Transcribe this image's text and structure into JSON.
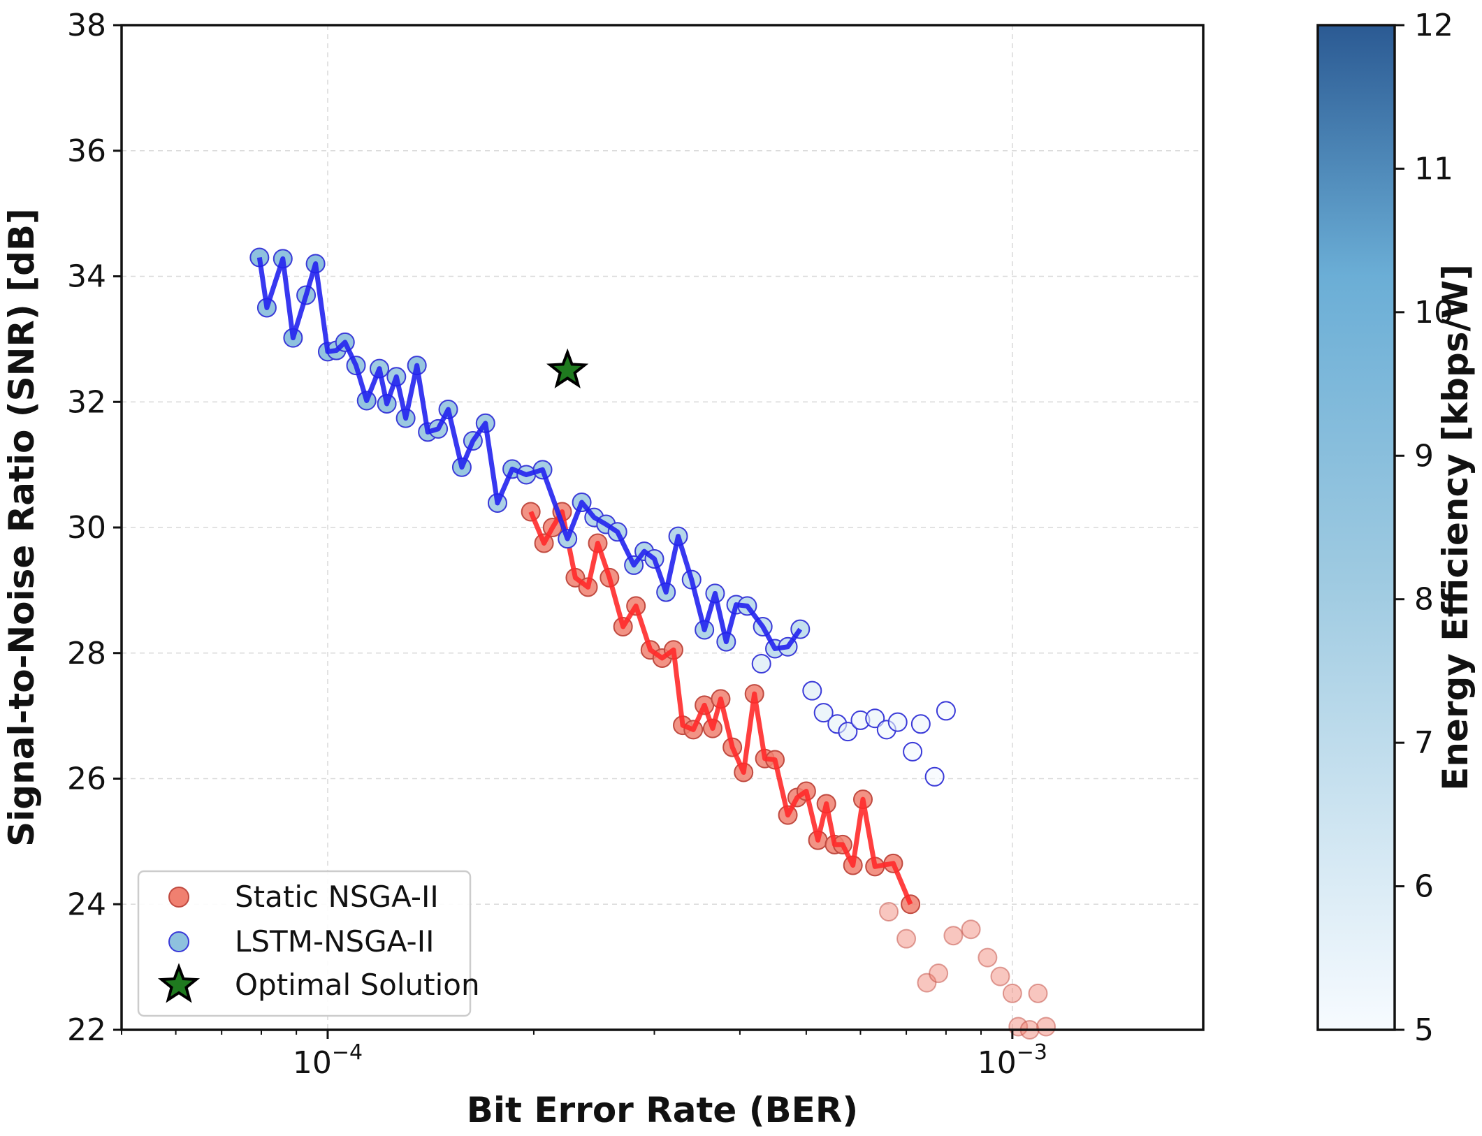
{
  "chart_data": {
    "type": "scatter",
    "title": "",
    "xlabel": "Bit Error Rate (BER)",
    "ylabel": "Signal-to-Noise Ratio (SNR) [dB]",
    "xscale": "log",
    "xlim": [
      5e-05,
      0.0019
    ],
    "ylim": [
      22,
      38
    ],
    "grid": true,
    "x_tick_labels": [
      {
        "value": 0.0001,
        "base": "10",
        "exp": "−4"
      },
      {
        "value": 0.001,
        "base": "10",
        "exp": "−3"
      }
    ],
    "y_ticks": [
      22,
      24,
      26,
      28,
      30,
      32,
      34,
      36,
      38
    ],
    "colorbar": {
      "label": "Energy Efficiency [kbps/W]",
      "min": 5,
      "max": 12,
      "ticks": [
        5,
        6,
        7,
        8,
        9,
        10,
        11,
        12
      ],
      "color_low": "#f7fbff",
      "color_mid": "#6baed6",
      "color_high": "#2b5a93"
    },
    "series": [
      {
        "name": "LSTM-NSGA-II",
        "line_color": "#2222ee",
        "edge_color": "#3a3ad8",
        "points": [
          {
            "x": 7.95e-05,
            "y": 34.3,
            "e": 8.8
          },
          {
            "x": 8.15e-05,
            "y": 33.5,
            "e": 8.6
          },
          {
            "x": 8.6e-05,
            "y": 34.28,
            "e": 8.7
          },
          {
            "x": 8.9e-05,
            "y": 33.02,
            "e": 8.8
          },
          {
            "x": 9.3e-05,
            "y": 33.7,
            "e": 8.4
          },
          {
            "x": 9.6e-05,
            "y": 34.2,
            "e": 8.9
          },
          {
            "x": 0.0001,
            "y": 32.8,
            "e": 8.6
          },
          {
            "x": 0.000103,
            "y": 32.82,
            "e": 8.3
          },
          {
            "x": 0.000106,
            "y": 32.95,
            "e": 8.5
          },
          {
            "x": 0.00011,
            "y": 32.58,
            "e": 8.2
          },
          {
            "x": 0.000114,
            "y": 32.02,
            "e": 8.6
          },
          {
            "x": 0.000119,
            "y": 32.53,
            "e": 8.1
          },
          {
            "x": 0.000122,
            "y": 31.97,
            "e": 8.4
          },
          {
            "x": 0.000126,
            "y": 32.4,
            "e": 8.0
          },
          {
            "x": 0.00013,
            "y": 31.74,
            "e": 8.3
          },
          {
            "x": 0.000135,
            "y": 32.58,
            "e": 8.5
          },
          {
            "x": 0.00014,
            "y": 31.52,
            "e": 8.1
          },
          {
            "x": 0.000145,
            "y": 31.57,
            "e": 7.9
          },
          {
            "x": 0.00015,
            "y": 31.88,
            "e": 8.2
          },
          {
            "x": 0.000157,
            "y": 30.96,
            "e": 8.4
          },
          {
            "x": 0.000163,
            "y": 31.38,
            "e": 7.8
          },
          {
            "x": 0.00017,
            "y": 31.66,
            "e": 8.0
          },
          {
            "x": 0.000177,
            "y": 30.39,
            "e": 7.7
          },
          {
            "x": 0.000186,
            "y": 30.93,
            "e": 8.2
          },
          {
            "x": 0.000195,
            "y": 30.84,
            "e": 7.5
          },
          {
            "x": 0.000206,
            "y": 30.92,
            "e": 7.9
          },
          {
            "x": 0.000224,
            "y": 29.82,
            "e": 7.6
          },
          {
            "x": 0.000235,
            "y": 30.4,
            "e": 7.8
          },
          {
            "x": 0.000245,
            "y": 30.16,
            "e": 7.2
          },
          {
            "x": 0.000255,
            "y": 30.05,
            "e": 7.5
          },
          {
            "x": 0.000265,
            "y": 29.93,
            "e": 7.3
          },
          {
            "x": 0.00028,
            "y": 29.4,
            "e": 7.6
          },
          {
            "x": 0.00029,
            "y": 29.62,
            "e": 7.4
          },
          {
            "x": 0.0003,
            "y": 29.5,
            "e": 7.1
          },
          {
            "x": 0.000312,
            "y": 28.97,
            "e": 7.6
          },
          {
            "x": 0.000325,
            "y": 29.86,
            "e": 7.3
          },
          {
            "x": 0.00034,
            "y": 29.17,
            "e": 6.9
          },
          {
            "x": 0.000355,
            "y": 28.37,
            "e": 7.5
          },
          {
            "x": 0.000368,
            "y": 28.95,
            "e": 7.0
          },
          {
            "x": 0.000382,
            "y": 28.18,
            "e": 7.3
          },
          {
            "x": 0.000395,
            "y": 28.77,
            "e": 6.8
          },
          {
            "x": 0.00041,
            "y": 28.75,
            "e": 7.0
          },
          {
            "x": 0.000432,
            "y": 28.42,
            "e": 6.7
          },
          {
            "x": 0.00045,
            "y": 28.07,
            "e": 6.9
          },
          {
            "x": 0.00047,
            "y": 28.1,
            "e": 6.6
          },
          {
            "x": 0.00049,
            "y": 28.38,
            "e": 6.8
          }
        ],
        "trail": [
          {
            "x": 0.00043,
            "y": 27.83,
            "e": 6.3
          },
          {
            "x": 0.00051,
            "y": 27.4,
            "e": 6.0
          },
          {
            "x": 0.00053,
            "y": 27.05,
            "e": 5.8
          },
          {
            "x": 0.000555,
            "y": 26.87,
            "e": 5.6
          },
          {
            "x": 0.000575,
            "y": 26.75,
            "e": 5.7
          },
          {
            "x": 0.0006,
            "y": 26.93,
            "e": 5.4
          },
          {
            "x": 0.00063,
            "y": 26.96,
            "e": 5.6
          },
          {
            "x": 0.000655,
            "y": 26.78,
            "e": 5.3
          },
          {
            "x": 0.00068,
            "y": 26.9,
            "e": 5.5
          },
          {
            "x": 0.000715,
            "y": 26.43,
            "e": 5.2
          },
          {
            "x": 0.000735,
            "y": 26.87,
            "e": 5.4
          },
          {
            "x": 0.00077,
            "y": 26.03,
            "e": 5.1
          },
          {
            "x": 0.0008,
            "y": 27.08,
            "e": 5.2
          }
        ]
      },
      {
        "name": "Static NSGA-II",
        "line_color": "#ff2a2a",
        "face_color": "#f08070",
        "edge_color": "#c04a40",
        "points": [
          {
            "x": 0.000198,
            "y": 30.25
          },
          {
            "x": 0.000207,
            "y": 29.75
          },
          {
            "x": 0.000213,
            "y": 30.0
          },
          {
            "x": 0.00022,
            "y": 30.25
          },
          {
            "x": 0.00023,
            "y": 29.2
          },
          {
            "x": 0.00024,
            "y": 29.05
          },
          {
            "x": 0.000248,
            "y": 29.75
          },
          {
            "x": 0.000258,
            "y": 29.2
          },
          {
            "x": 0.00027,
            "y": 28.42
          },
          {
            "x": 0.000282,
            "y": 28.75
          },
          {
            "x": 0.000296,
            "y": 28.05
          },
          {
            "x": 0.000308,
            "y": 27.92
          },
          {
            "x": 0.00032,
            "y": 28.05
          },
          {
            "x": 0.00033,
            "y": 26.85
          },
          {
            "x": 0.000342,
            "y": 26.78
          },
          {
            "x": 0.000355,
            "y": 27.17
          },
          {
            "x": 0.000365,
            "y": 26.8
          },
          {
            "x": 0.000375,
            "y": 27.27
          },
          {
            "x": 0.00039,
            "y": 26.5
          },
          {
            "x": 0.000405,
            "y": 26.1
          },
          {
            "x": 0.00042,
            "y": 27.35
          },
          {
            "x": 0.000435,
            "y": 26.32
          },
          {
            "x": 0.00045,
            "y": 26.3
          },
          {
            "x": 0.00047,
            "y": 25.42
          },
          {
            "x": 0.000485,
            "y": 25.7
          },
          {
            "x": 0.0005,
            "y": 25.8
          },
          {
            "x": 0.00052,
            "y": 25.02
          },
          {
            "x": 0.000535,
            "y": 25.6
          },
          {
            "x": 0.00055,
            "y": 24.95
          },
          {
            "x": 0.000565,
            "y": 24.95
          },
          {
            "x": 0.000585,
            "y": 24.62
          },
          {
            "x": 0.000605,
            "y": 25.67
          },
          {
            "x": 0.00063,
            "y": 24.6
          },
          {
            "x": 0.00067,
            "y": 24.65
          },
          {
            "x": 0.00071,
            "y": 24.0
          }
        ],
        "trail": [
          {
            "x": 0.00066,
            "y": 23.88
          },
          {
            "x": 0.0007,
            "y": 23.45
          },
          {
            "x": 0.00075,
            "y": 22.75
          },
          {
            "x": 0.00078,
            "y": 22.9
          },
          {
            "x": 0.00082,
            "y": 23.5
          },
          {
            "x": 0.00087,
            "y": 23.6
          },
          {
            "x": 0.00092,
            "y": 23.15
          },
          {
            "x": 0.00096,
            "y": 22.85
          },
          {
            "x": 0.001,
            "y": 22.58
          },
          {
            "x": 0.00109,
            "y": 22.58
          },
          {
            "x": 0.00102,
            "y": 22.05
          },
          {
            "x": 0.00106,
            "y": 22.0
          },
          {
            "x": 0.00112,
            "y": 22.05
          }
        ]
      }
    ],
    "optimal_solution": {
      "name": "Optimal Solution",
      "x": 0.000224,
      "y": 32.5,
      "color": "#1f7a1f"
    },
    "legend": {
      "position": "lower-left",
      "entries": [
        "Static NSGA-II",
        "LSTM-NSGA-II",
        "Optimal Solution"
      ]
    }
  }
}
